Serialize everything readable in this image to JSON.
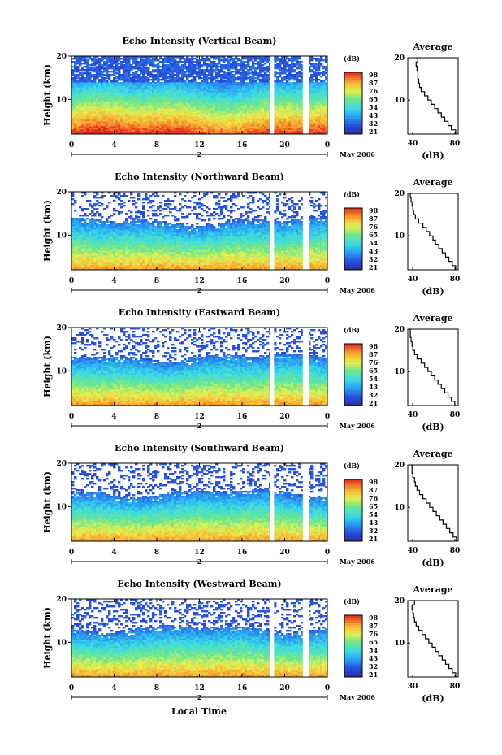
{
  "figure": {
    "xlabel": "Local Time",
    "date_label": "May 2006",
    "day_label": "2",
    "ylabel": "Height (km)",
    "avg_title": "Average",
    "avg_unit": "(dB)",
    "cb_unit": "(dB)"
  },
  "chart_data": [
    {
      "type": "heatmap",
      "title": "Echo Intensity (Vertical Beam)",
      "xlabel": "Local Time",
      "ylabel": "Height (km)",
      "x_ticks": [
        "0",
        "4",
        "8",
        "12",
        "16",
        "20",
        "0"
      ],
      "xlim": [
        0,
        24
      ],
      "y_ticks": [
        "10",
        "20"
      ],
      "ylim": [
        2,
        20
      ],
      "gaps_hours": [
        [
          18.6,
          19.0
        ],
        [
          21.7,
          22.3
        ]
      ],
      "colorbar": {
        "unit": "(dB)",
        "ticks": [
          "98",
          "87",
          "76",
          "65",
          "54",
          "43",
          "32",
          "21"
        ],
        "range": [
          21,
          98
        ]
      },
      "profile_kind": "vertical",
      "average_profile": {
        "title": "Average",
        "xlabel": "(dB)",
        "x_ticks": [
          "40",
          "80"
        ],
        "xlim": [
          30,
          90
        ],
        "height_km": [
          2,
          3,
          4,
          5,
          6,
          7,
          8,
          9,
          10,
          11,
          12,
          13,
          14,
          15,
          16,
          17,
          18,
          19,
          20
        ],
        "db": [
          87,
          82,
          78,
          74,
          70,
          66,
          62,
          58,
          54,
          50,
          46,
          44,
          43,
          42,
          42,
          41,
          40,
          42,
          40
        ]
      }
    },
    {
      "type": "heatmap",
      "title": "Echo Intensity (Northward Beam)",
      "xlabel": "Local Time",
      "ylabel": "Height (km)",
      "x_ticks": [
        "0",
        "4",
        "8",
        "12",
        "16",
        "20",
        "0"
      ],
      "xlim": [
        0,
        24
      ],
      "y_ticks": [
        "10",
        "20"
      ],
      "ylim": [
        2,
        20
      ],
      "gaps_hours": [
        [
          18.6,
          19.0
        ],
        [
          21.7,
          22.3
        ]
      ],
      "colorbar": {
        "unit": "(dB)",
        "ticks": [
          "98",
          "87",
          "76",
          "65",
          "54",
          "43",
          "32",
          "21"
        ],
        "range": [
          21,
          98
        ]
      },
      "profile_kind": "oblique",
      "average_profile": {
        "title": "Average",
        "xlabel": "(dB)",
        "x_ticks": [
          "40",
          "80"
        ],
        "xlim": [
          25,
          85
        ],
        "height_km": [
          2,
          3,
          4,
          5,
          6,
          7,
          8,
          9,
          10,
          11,
          12,
          13,
          14,
          15,
          16,
          17,
          18,
          19,
          20
        ],
        "db": [
          82,
          78,
          74,
          70,
          66,
          62,
          58,
          55,
          51,
          47,
          43,
          38,
          34,
          32,
          31,
          30,
          29,
          28,
          28
        ]
      }
    },
    {
      "type": "heatmap",
      "title": "Echo Intensity (Eastward Beam)",
      "xlabel": "Local Time",
      "ylabel": "Height (km)",
      "x_ticks": [
        "0",
        "4",
        "8",
        "12",
        "16",
        "20",
        "0"
      ],
      "xlim": [
        0,
        24
      ],
      "y_ticks": [
        "10",
        "20"
      ],
      "ylim": [
        2,
        20
      ],
      "gaps_hours": [
        [
          18.6,
          19.0
        ],
        [
          21.7,
          22.3
        ]
      ],
      "colorbar": {
        "unit": "(dB)",
        "ticks": [
          "98",
          "87",
          "76",
          "65",
          "54",
          "43",
          "32",
          "21"
        ],
        "range": [
          21,
          98
        ]
      },
      "profile_kind": "oblique",
      "average_profile": {
        "title": "Average",
        "xlabel": "(dB)",
        "x_ticks": [
          "40",
          "80"
        ],
        "xlim": [
          25,
          85
        ],
        "height_km": [
          2,
          3,
          4,
          5,
          6,
          7,
          8,
          9,
          10,
          11,
          12,
          13,
          14,
          15,
          16,
          17,
          18,
          19,
          20
        ],
        "db": [
          81,
          77,
          73,
          69,
          65,
          61,
          57,
          53,
          49,
          45,
          41,
          36,
          33,
          31,
          30,
          29,
          28,
          28,
          27
        ]
      }
    },
    {
      "type": "heatmap",
      "title": "Echo Intensity (Southward Beam)",
      "xlabel": "Local Time",
      "ylabel": "Height (km)",
      "x_ticks": [
        "0",
        "4",
        "8",
        "12",
        "16",
        "20",
        "0"
      ],
      "xlim": [
        0,
        24
      ],
      "y_ticks": [
        "10",
        "20"
      ],
      "ylim": [
        2,
        20
      ],
      "gaps_hours": [
        [
          18.6,
          19.0
        ],
        [
          21.7,
          22.3
        ]
      ],
      "colorbar": {
        "unit": "(dB)",
        "ticks": [
          "98",
          "87",
          "76",
          "65",
          "54",
          "43",
          "32",
          "21"
        ],
        "range": [
          21,
          98
        ]
      },
      "profile_kind": "oblique",
      "average_profile": {
        "title": "Average",
        "xlabel": "(dB)",
        "x_ticks": [
          "40",
          "80"
        ],
        "xlim": [
          25,
          85
        ],
        "height_km": [
          2,
          3,
          4,
          5,
          6,
          7,
          8,
          9,
          10,
          11,
          12,
          13,
          14,
          15,
          16,
          17,
          18,
          19,
          20
        ],
        "db": [
          83,
          79,
          75,
          71,
          67,
          63,
          59,
          55,
          51,
          47,
          43,
          39,
          36,
          34,
          33,
          31,
          30,
          30,
          29
        ]
      }
    },
    {
      "type": "heatmap",
      "title": "Echo Intensity (Westward Beam)",
      "xlabel": "Local Time",
      "ylabel": "Height (km)",
      "x_ticks": [
        "0",
        "4",
        "8",
        "12",
        "16",
        "20",
        "0"
      ],
      "xlim": [
        0,
        24
      ],
      "y_ticks": [
        "10",
        "20"
      ],
      "ylim": [
        2,
        20
      ],
      "gaps_hours": [
        [
          18.6,
          19.0
        ],
        [
          21.7,
          22.3
        ]
      ],
      "colorbar": {
        "unit": "(dB)",
        "ticks": [
          "98",
          "87",
          "76",
          "65",
          "54",
          "43",
          "32",
          "21"
        ],
        "range": [
          21,
          98
        ]
      },
      "profile_kind": "oblique",
      "average_profile": {
        "title": "Average",
        "xlabel": "(dB)",
        "x_ticks": [
          "30",
          "80"
        ],
        "xlim": [
          25,
          85
        ],
        "height_km": [
          2,
          3,
          4,
          5,
          6,
          7,
          8,
          9,
          10,
          11,
          12,
          13,
          14,
          15,
          16,
          17,
          18,
          19,
          20
        ],
        "db": [
          82,
          78,
          74,
          70,
          66,
          62,
          58,
          54,
          50,
          46,
          42,
          38,
          35,
          33,
          32,
          31,
          30,
          33,
          29
        ]
      }
    }
  ]
}
